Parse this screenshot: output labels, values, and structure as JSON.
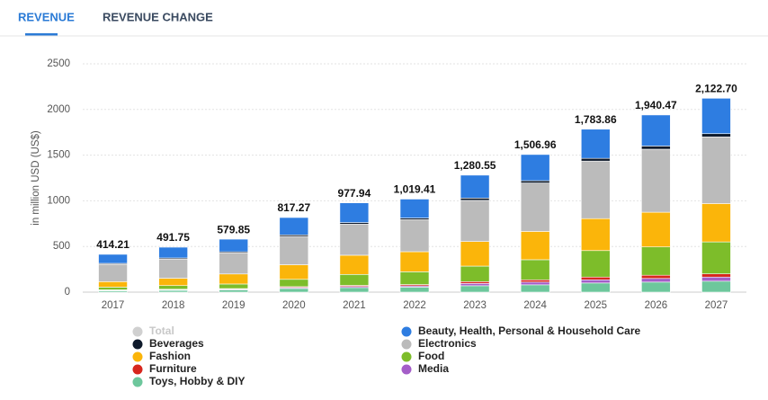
{
  "tabs": [
    "REVENUE",
    "REVENUE CHANGE"
  ],
  "chart_data": {
    "type": "stacked_bar",
    "y_label": "in million USD (US$)",
    "categories": [
      "2017",
      "2018",
      "2019",
      "2020",
      "2021",
      "2022",
      "2023",
      "2024",
      "2025",
      "2026",
      "2027"
    ],
    "ylim": [
      0,
      2500
    ],
    "yticks": [
      0,
      500,
      1000,
      1500,
      2000,
      2500
    ],
    "grid": true,
    "total": {
      "name": "Total",
      "color": "#d0d0d0",
      "values": [
        414.21,
        491.75,
        579.85,
        817.27,
        977.94,
        1019.41,
        1280.55,
        1506.96,
        1783.86,
        1940.47,
        2122.7
      ],
      "value_labels": [
        "414.21",
        "491.75",
        "579.85",
        "817.27",
        "977.94",
        "1,019.41",
        "1,280.55",
        "1,506.96",
        "1,783.86",
        "1,940.47",
        "2,122.70"
      ]
    },
    "series": [
      {
        "name": "Beauty, Health, Personal & Household Care",
        "color": "#2e7de1",
        "values": [
          99,
          118,
          138,
          190,
          216,
          208,
          251,
          287,
          319,
          340,
          388
        ]
      },
      {
        "name": "Beverages",
        "color": "#0e1a2b",
        "values": [
          10,
          12,
          13,
          17,
          18,
          18,
          25,
          25,
          30,
          35,
          35
        ]
      },
      {
        "name": "Electronics",
        "color": "#bbbbbb",
        "values": [
          190,
          210,
          230,
          310,
          340,
          350,
          450,
          530,
          630,
          690,
          730
        ]
      },
      {
        "name": "Fashion",
        "color": "#fbb50a",
        "values": [
          60,
          80,
          110,
          160,
          210,
          220,
          270,
          310,
          350,
          380,
          420
        ]
      },
      {
        "name": "Food",
        "color": "#7dbd2a",
        "values": [
          30,
          40,
          50,
          80,
          120,
          140,
          170,
          220,
          290,
          310,
          350
        ]
      },
      {
        "name": "Furniture",
        "color": "#d7261d",
        "values": [
          5,
          6,
          7,
          10,
          12,
          14,
          20,
          25,
          30,
          35,
          35
        ]
      },
      {
        "name": "Media",
        "color": "#a45ec8",
        "values": [
          5,
          6,
          7,
          10,
          12,
          14,
          25,
          30,
          35,
          40,
          45
        ]
      },
      {
        "name": "Toys, Hobby & DIY",
        "color": "#6dc79c",
        "values": [
          15,
          20,
          25,
          40,
          50,
          55,
          70,
          80,
          100,
          110,
          120
        ]
      }
    ]
  }
}
